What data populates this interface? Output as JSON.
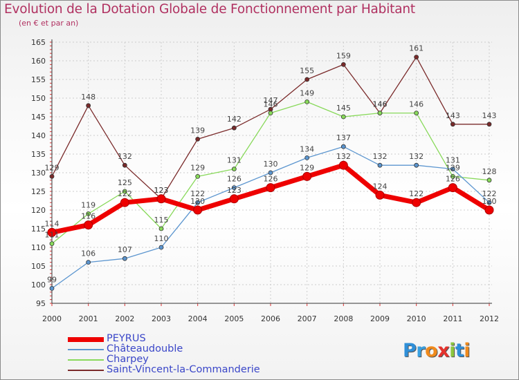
{
  "title": "Evolution de la Dotation Globale de Fonctionnement par Habitant",
  "subtitle": "(en € et par an)",
  "logo": {
    "letters": [
      "P",
      "r",
      "o",
      "x",
      "i",
      "t",
      "i"
    ],
    "colors": [
      "#2f8fd8",
      "#3aa0e0",
      "#f08a1c",
      "#e5322d",
      "#8cc63f",
      "#2f8fd8",
      "#f08a1c"
    ]
  },
  "chart_data": {
    "type": "line",
    "title": "Evolution de la Dotation Globale de Fonctionnement par Habitant",
    "subtitle": "(en € et par an)",
    "x": [
      "2000",
      "2001",
      "2002",
      "2003",
      "2004",
      "2005",
      "2006",
      "2007",
      "2008",
      "2009",
      "2010",
      "2011",
      "2012"
    ],
    "ylim": [
      95,
      165
    ],
    "yticks": [
      "95",
      "100",
      "105",
      "110",
      "115",
      "120",
      "125",
      "130",
      "135",
      "140",
      "145",
      "150",
      "155",
      "160",
      "165"
    ],
    "grid": true,
    "legend_position": "bottom-left",
    "series": [
      {
        "name": "PEYRUS",
        "color": "#ee0000",
        "values": [
          114,
          116,
          122,
          123,
          120,
          123,
          126,
          129,
          132,
          124,
          122,
          126,
          120
        ]
      },
      {
        "name": "Châteaudouble",
        "color": "#5b95cf",
        "values": [
          99,
          106,
          107,
          110,
          122,
          126,
          130,
          134,
          137,
          132,
          132,
          131,
          122
        ]
      },
      {
        "name": "Charpey",
        "color": "#88d95a",
        "values": [
          111,
          119,
          125,
          115,
          129,
          131,
          146,
          149,
          145,
          146,
          146,
          129,
          128
        ]
      },
      {
        "name": "Saint-Vincent-la-Commanderie",
        "color": "#7a2a2a",
        "values": [
          129,
          148,
          132,
          123,
          139,
          142,
          147,
          155,
          159,
          146,
          161,
          143,
          143
        ]
      }
    ]
  }
}
